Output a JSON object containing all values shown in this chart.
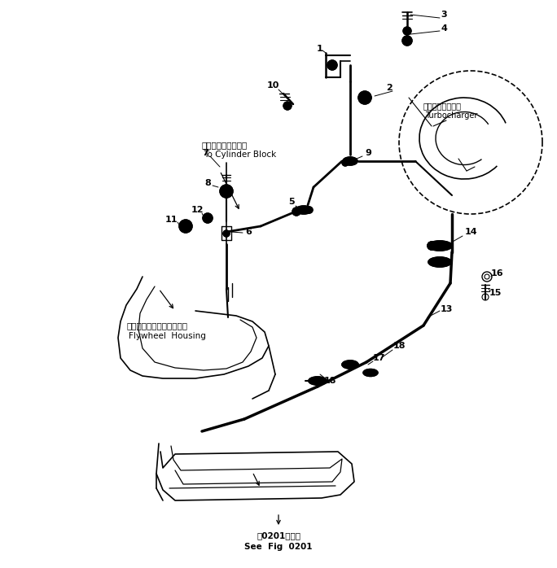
{
  "bg_color": "#ffffff",
  "line_color": "#000000",
  "fig_width": 6.84,
  "fig_height": 6.98,
  "dpi": 100,
  "bottom_text_line1": "第0201図参照",
  "bottom_text_line2": "See  Fig  0201",
  "label_cylinder_jp": "シリンダブロックへ",
  "label_cylinder_en": "To Cylinder Block",
  "label_flywheel_jp": "フライホイールハウジング",
  "label_flywheel_en": "Flywheel  Housing",
  "label_turbo_jp": "ターボチャージャ",
  "label_turbo_en": "Turbocharger"
}
